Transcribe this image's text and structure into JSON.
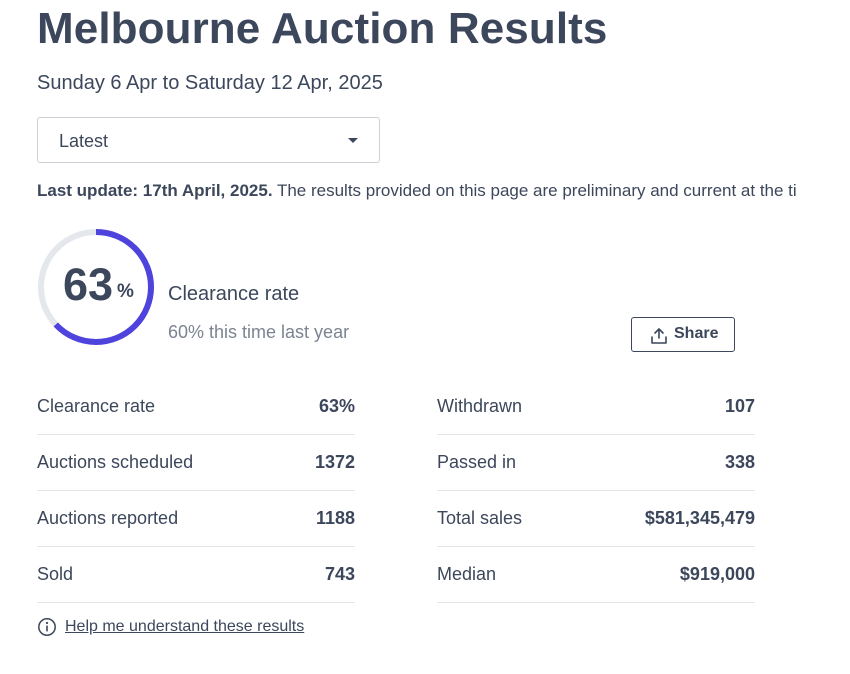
{
  "page": {
    "title": "Melbourne Auction Results",
    "date_range": "Sunday 6 Apr to Saturday 12 Apr, 2025"
  },
  "period_select": {
    "selected": "Latest"
  },
  "update": {
    "label": "Last update: 17th April, 2025.",
    "text": " The results provided on this page are preliminary and current at the ti"
  },
  "clearance": {
    "value": "63",
    "percent_sign": "%",
    "fraction": 0.63,
    "label": "Clearance rate",
    "last_year": "60% this time last year"
  },
  "share": {
    "label": "Share",
    "icon": "share-upload-icon"
  },
  "stats_left": [
    {
      "label": "Clearance rate",
      "value": "63%"
    },
    {
      "label": "Auctions scheduled",
      "value": "1372"
    },
    {
      "label": "Auctions reported",
      "value": "1188"
    },
    {
      "label": "Sold",
      "value": "743"
    }
  ],
  "stats_right": [
    {
      "label": "Withdrawn",
      "value": "107"
    },
    {
      "label": "Passed in",
      "value": "338"
    },
    {
      "label": "Total sales",
      "value": "$581,345,479"
    },
    {
      "label": "Median",
      "value": "$919,000"
    }
  ],
  "help": {
    "label": "Help me understand these results",
    "icon": "info-icon"
  },
  "colors": {
    "text": "#3c475b",
    "muted": "#7b8490",
    "gauge_track": "#e4e7ec",
    "gauge_fill": "#4f43dd"
  }
}
